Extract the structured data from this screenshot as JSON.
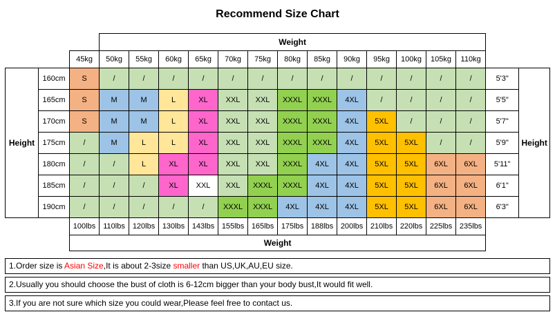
{
  "title": "Recommend Size Chart",
  "labels": {
    "weight": "Weight",
    "height": "Height"
  },
  "palette": {
    "g": "#c6e0b4",
    "o": "#f4b183",
    "b": "#9dc3e6",
    "y": "#ffe699",
    "p": "#ff66cc",
    "G": "#92d050",
    "d": "#ffc000",
    "w": "#ffffff"
  },
  "chart_data": {
    "type": "table",
    "kg_headers": [
      "45kg",
      "50kg",
      "55kg",
      "60kg",
      "65kg",
      "70kg",
      "75kg",
      "80kg",
      "85kg",
      "90kg",
      "95kg",
      "100kg",
      "105kg",
      "110kg"
    ],
    "lbs_headers": [
      "100lbs",
      "110lbs",
      "120lbs",
      "130lbs",
      "143lbs",
      "155lbs",
      "165lbs",
      "175lbs",
      "188lbs",
      "200lbs",
      "210lbs",
      "220lbs",
      "225lbs",
      "235lbs"
    ],
    "rows": [
      {
        "cm": "160cm",
        "ft": "5'3\"",
        "sizes": [
          "S",
          "/",
          "/",
          "/",
          "/",
          "/",
          "/",
          "/",
          "/",
          "/",
          "/",
          "/",
          "/",
          "/"
        ],
        "colors": [
          "o",
          "g",
          "g",
          "g",
          "g",
          "g",
          "g",
          "g",
          "g",
          "g",
          "g",
          "g",
          "g",
          "g"
        ]
      },
      {
        "cm": "165cm",
        "ft": "5'5\"",
        "sizes": [
          "S",
          "M",
          "M",
          "L",
          "XL",
          "XXL",
          "XXL",
          "XXXL",
          "XXXL",
          "4XL",
          "/",
          "/",
          "/",
          "/"
        ],
        "colors": [
          "o",
          "b",
          "b",
          "y",
          "p",
          "g",
          "g",
          "G",
          "G",
          "b",
          "g",
          "g",
          "g",
          "g"
        ]
      },
      {
        "cm": "170cm",
        "ft": "5'7\"",
        "sizes": [
          "S",
          "M",
          "M",
          "L",
          "XL",
          "XXL",
          "XXL",
          "XXXL",
          "XXXL",
          "4XL",
          "5XL",
          "/",
          "/",
          "/"
        ],
        "colors": [
          "o",
          "b",
          "b",
          "y",
          "p",
          "g",
          "g",
          "G",
          "G",
          "b",
          "d",
          "g",
          "g",
          "g"
        ]
      },
      {
        "cm": "175cm",
        "ft": "5'9\"",
        "sizes": [
          "/",
          "M",
          "L",
          "L",
          "XL",
          "XXL",
          "XXL",
          "XXXL",
          "XXXL",
          "4XL",
          "5XL",
          "5XL",
          "/",
          "/"
        ],
        "colors": [
          "g",
          "b",
          "y",
          "y",
          "p",
          "g",
          "g",
          "G",
          "G",
          "b",
          "d",
          "d",
          "g",
          "g"
        ]
      },
      {
        "cm": "180cm",
        "ft": "5'11\"",
        "sizes": [
          "/",
          "/",
          "L",
          "XL",
          "XL",
          "XXL",
          "XXL",
          "XXXL",
          "4XL",
          "4XL",
          "5XL",
          "5XL",
          "6XL",
          "6XL"
        ],
        "colors": [
          "g",
          "g",
          "y",
          "p",
          "p",
          "g",
          "g",
          "G",
          "b",
          "b",
          "d",
          "d",
          "o",
          "o"
        ]
      },
      {
        "cm": "185cm",
        "ft": "6'1\"",
        "sizes": [
          "/",
          "/",
          "/",
          "XL",
          "XXL",
          "XXL",
          "XXXL",
          "XXXL",
          "4XL",
          "4XL",
          "5XL",
          "5XL",
          "6XL",
          "6XL"
        ],
        "colors": [
          "g",
          "g",
          "g",
          "p",
          "w",
          "g",
          "G",
          "G",
          "b",
          "b",
          "d",
          "d",
          "o",
          "o"
        ]
      },
      {
        "cm": "190cm",
        "ft": "6'3\"",
        "sizes": [
          "/",
          "/",
          "/",
          "/",
          "/",
          "XXXL",
          "XXXL",
          "4XL",
          "4XL",
          "4XL",
          "5XL",
          "5XL",
          "6XL",
          "6XL"
        ],
        "colors": [
          "g",
          "g",
          "g",
          "g",
          "g",
          "G",
          "G",
          "b",
          "b",
          "b",
          "d",
          "d",
          "o",
          "o"
        ]
      }
    ]
  },
  "notes": [
    {
      "segments": [
        {
          "text": "1.Order size is ",
          "color": "#000000"
        },
        {
          "text": "Asian Size",
          "color": "#ff0000"
        },
        {
          "text": ",It is about 2-3size ",
          "color": "#000000"
        },
        {
          "text": "smaller",
          "color": "#ff0000"
        },
        {
          "text": " than US,UK,AU,EU size.",
          "color": "#000000"
        }
      ]
    },
    {
      "segments": [
        {
          "text": "2.Usually you should choose the bust of cloth is 6-12cm bigger than your body bust,It would fit well.",
          "color": "#000000"
        }
      ]
    },
    {
      "segments": [
        {
          "text": "3.If you are not sure which size you could wear,Please feel free to contact us.",
          "color": "#000000"
        }
      ]
    }
  ]
}
